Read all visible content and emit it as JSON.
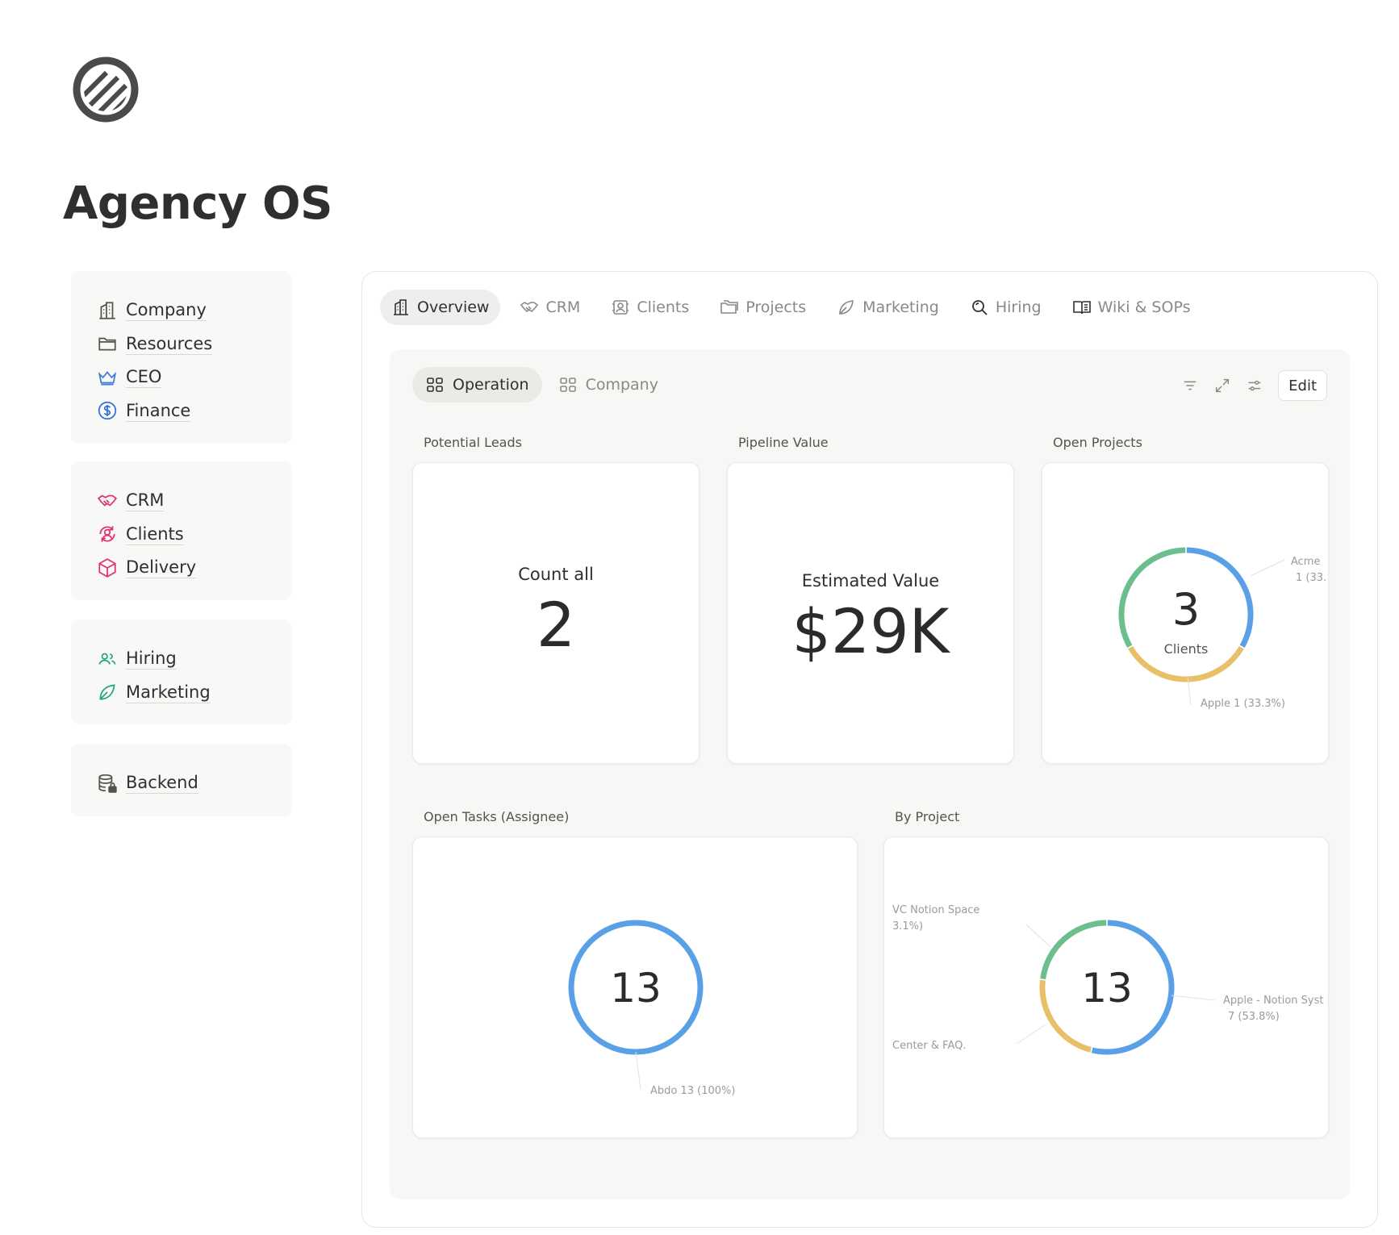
{
  "page": {
    "title": "Agency OS"
  },
  "sidebar": {
    "groups": [
      {
        "items": [
          {
            "label": "Company",
            "icon": "building-icon",
            "color": "#55534e"
          },
          {
            "label": "Resources",
            "icon": "folder-icon",
            "color": "#55534e"
          },
          {
            "label": "CEO",
            "icon": "crown-icon",
            "color": "#3a7bd5"
          },
          {
            "label": "Finance",
            "icon": "dollar-circle-icon",
            "color": "#2f6fd8"
          }
        ]
      },
      {
        "items": [
          {
            "label": "CRM",
            "icon": "handshake-icon",
            "color": "#e0316b"
          },
          {
            "label": "Clients",
            "icon": "user-cycle-icon",
            "color": "#e0316b"
          },
          {
            "label": "Delivery",
            "icon": "package-icon",
            "color": "#e0316b"
          }
        ]
      },
      {
        "items": [
          {
            "label": "Hiring",
            "icon": "people-icon",
            "color": "#1fa87a"
          },
          {
            "label": "Marketing",
            "icon": "leaf-icon",
            "color": "#1fa87a"
          }
        ]
      },
      {
        "items": [
          {
            "label": "Backend",
            "icon": "database-lock-icon",
            "color": "#55534e"
          }
        ]
      }
    ]
  },
  "tabs": [
    {
      "label": "Overview",
      "icon": "building-icon",
      "active": true
    },
    {
      "label": "CRM",
      "icon": "handshake-icon",
      "active": false
    },
    {
      "label": "Clients",
      "icon": "user-cycle-icon",
      "active": false
    },
    {
      "label": "Projects",
      "icon": "folders-icon",
      "active": false
    },
    {
      "label": "Marketing",
      "icon": "leaf-icon",
      "active": false
    },
    {
      "label": "Hiring",
      "icon": "magnifier-icon",
      "active": false
    },
    {
      "label": "Wiki & SOPs",
      "icon": "book-icon",
      "active": false
    }
  ],
  "subtabs": [
    {
      "label": "Operation",
      "icon": "grid-icon",
      "active": true
    },
    {
      "label": "Company",
      "icon": "grid-icon",
      "active": false
    }
  ],
  "toolbar": {
    "edit_label": "Edit",
    "icons": [
      "filter-icon",
      "expand-icon",
      "sliders-icon"
    ]
  },
  "cards": {
    "potential_leads": {
      "label": "Potential Leads",
      "caption": "Count all",
      "value": "2"
    },
    "pipeline_value": {
      "label": "Pipeline Value",
      "caption": "Estimated Value",
      "value": "$29K"
    },
    "open_projects": {
      "label": "Open Projects"
    },
    "open_tasks": {
      "label": "Open Tasks (Assignee)"
    },
    "by_project": {
      "label": "By Project"
    }
  },
  "chart_data": [
    {
      "type": "pie",
      "title": "Open Projects",
      "center_value": "3",
      "center_label": "Clients",
      "slices": [
        {
          "name": "Acme",
          "value": 1,
          "percent": 33.3,
          "color": "#5aa0e6",
          "label_text": "Acme",
          "label_sub": "1 (33."
        },
        {
          "name": "Apple",
          "value": 1,
          "percent": 33.3,
          "color": "#e8c06a",
          "label_text": "Apple",
          "label_sub": "1 (33.3%)"
        },
        {
          "name": "",
          "value": 1,
          "percent": 33.3,
          "color": "#6cbf8c"
        }
      ]
    },
    {
      "type": "pie",
      "title": "Open Tasks (Assignee)",
      "center_value": "13",
      "slices": [
        {
          "name": "Abdo",
          "value": 13,
          "percent": 100,
          "color": "#5aa0e6",
          "label_text": "Abdo",
          "label_sub": "13 (100%)"
        }
      ]
    },
    {
      "type": "pie",
      "title": "By Project",
      "center_value": "13",
      "slices": [
        {
          "name": "Apple - Notion Syst",
          "value": 7,
          "percent": 53.8,
          "color": "#5aa0e6",
          "label_text": "Apple - Notion Syst",
          "label_sub": "7 (53.8%)"
        },
        {
          "name": "Center & FAQ",
          "value": 3,
          "percent": 23.1,
          "color": "#e8c06a",
          "label_text": "Center & FAQ.",
          "label_sub": ""
        },
        {
          "name": "VC Notion Space",
          "value": 3,
          "percent": 23.1,
          "color": "#6cbf8c",
          "label_text": "VC Notion Space",
          "label_sub": "3.1%)"
        }
      ]
    }
  ]
}
